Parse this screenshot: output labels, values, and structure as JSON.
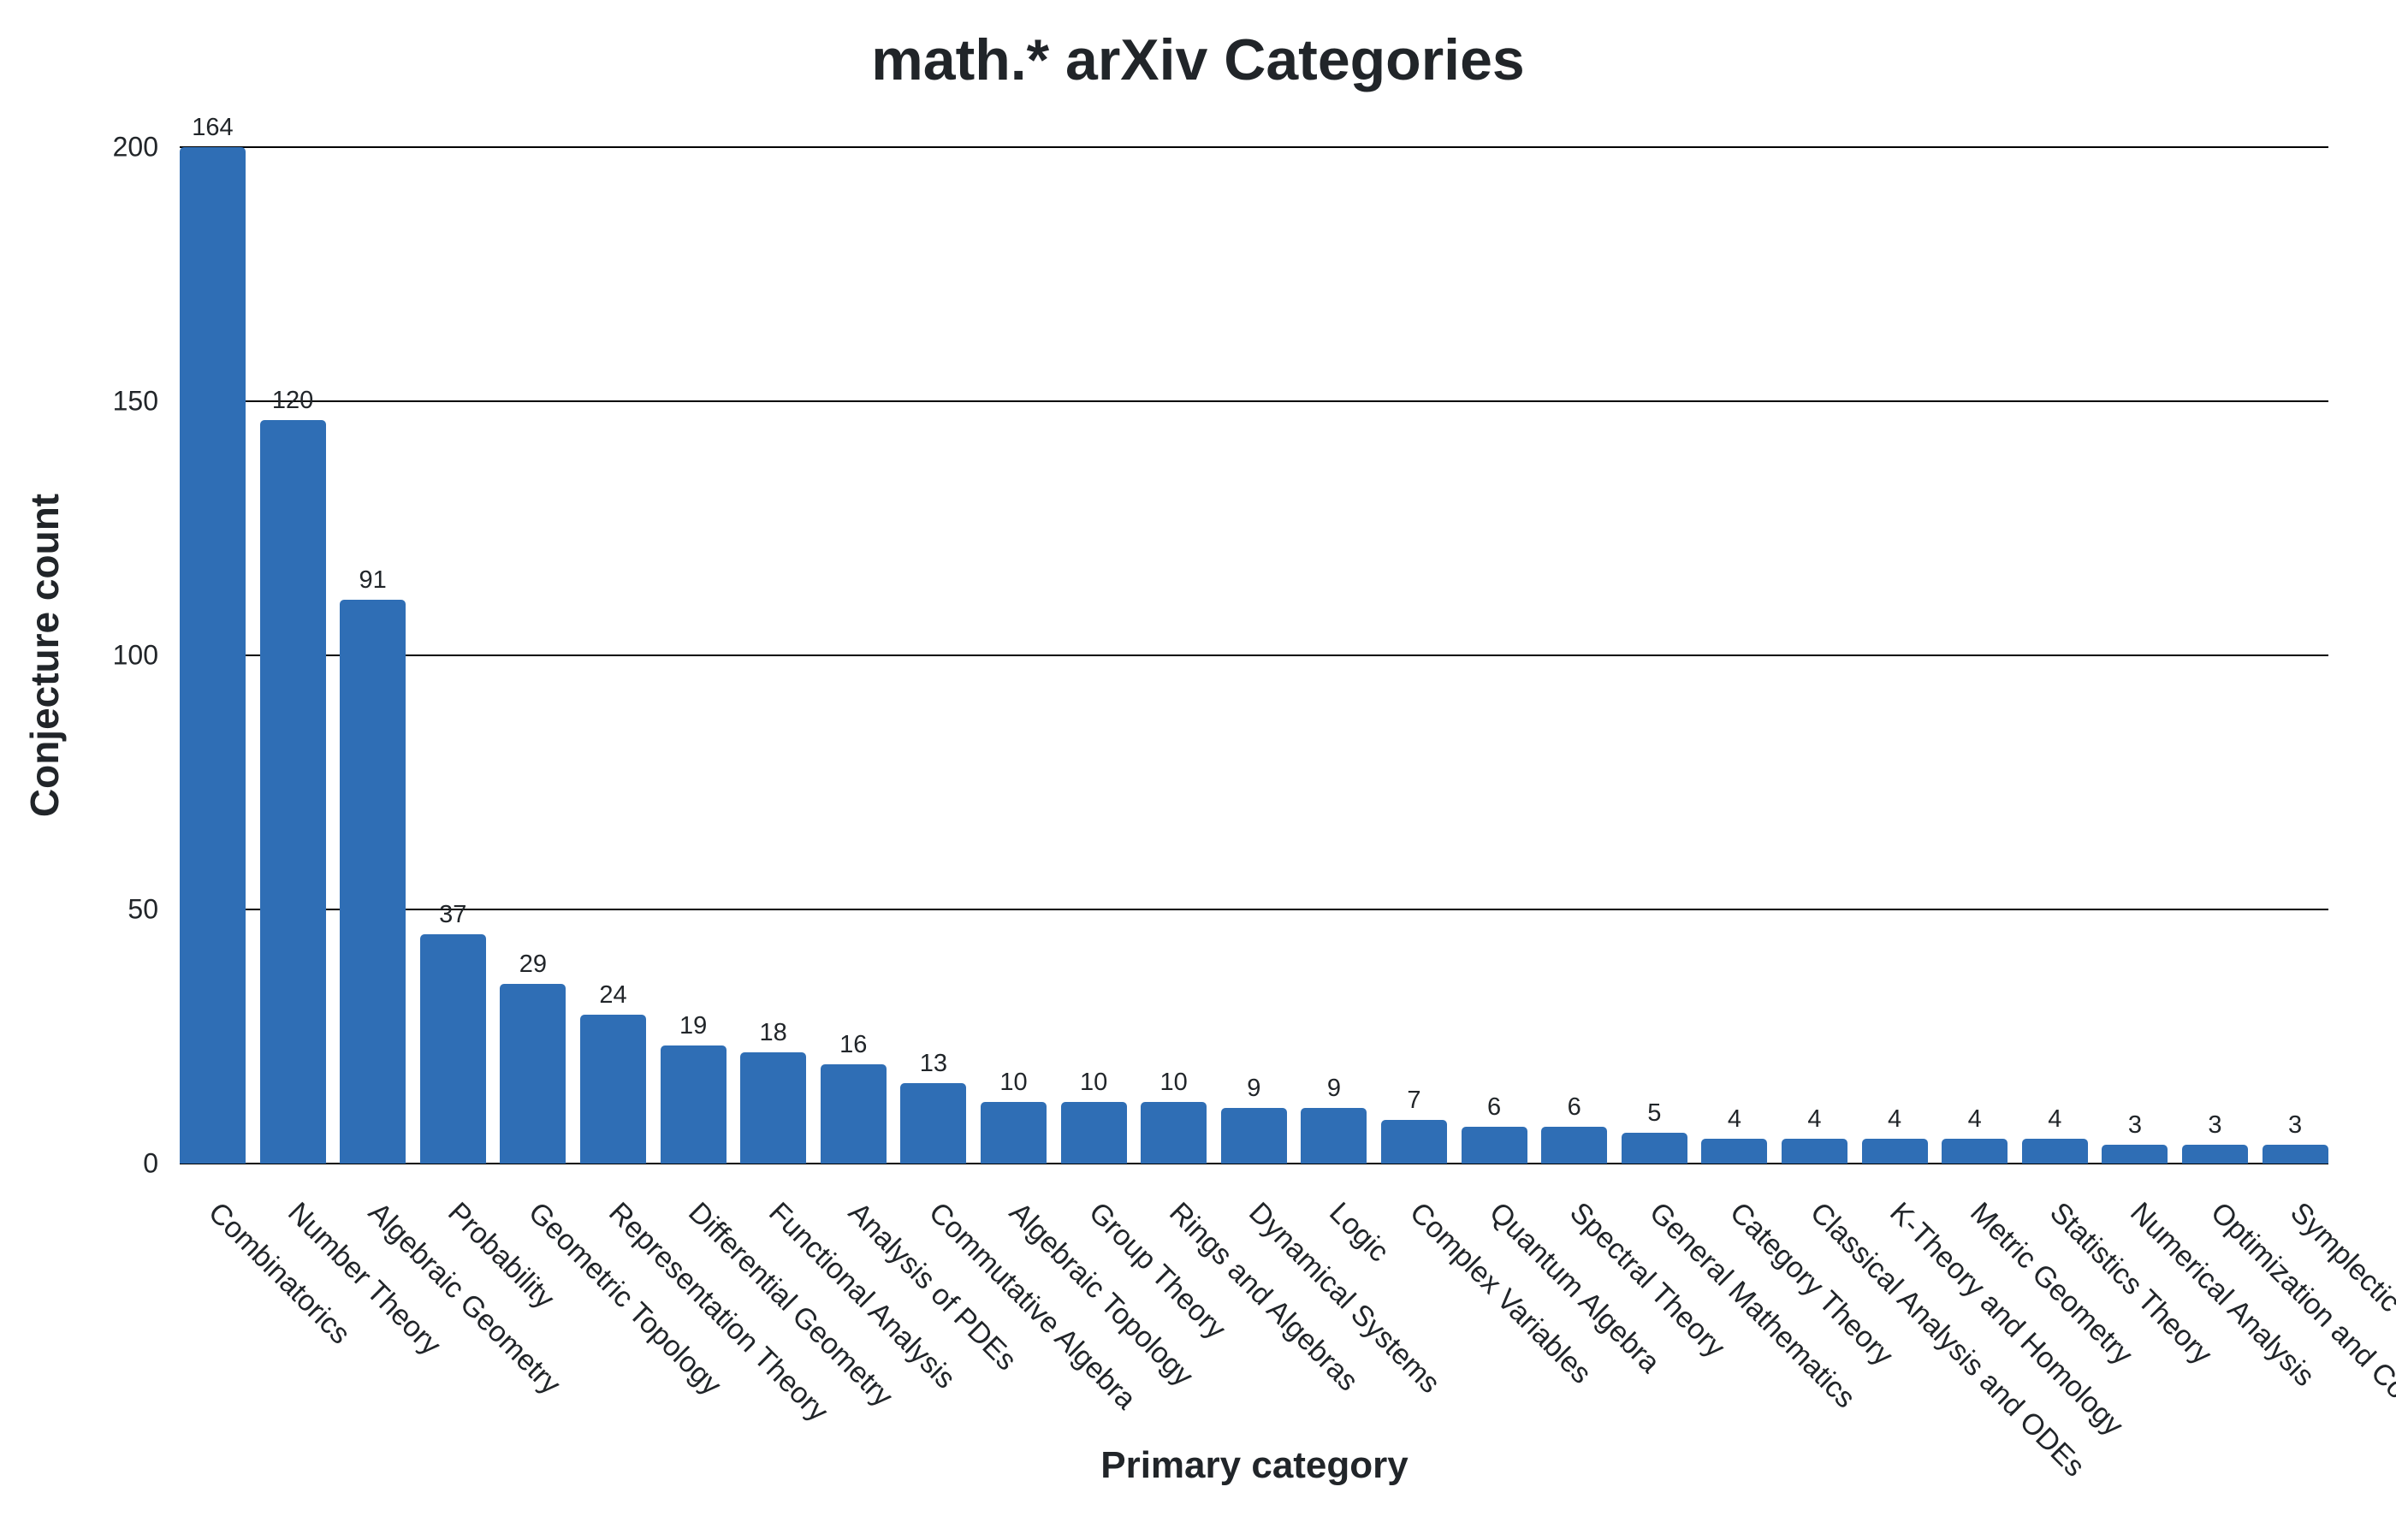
{
  "chart_data": {
    "type": "bar",
    "title": "math.* arXiv Categories",
    "xlabel": "Primary category",
    "ylabel": "Conjecture count",
    "ylim": [
      0,
      200
    ],
    "yticks": [
      "0",
      "50",
      "100",
      "150",
      "200"
    ],
    "grid": true,
    "legend": null,
    "bar_color": "#2f6eb5",
    "categories": [
      "Combinatorics",
      "Number Theory",
      "Algebraic Geometry",
      "Probability",
      "Geometric Topology",
      "Representation Theory",
      "Differential Geometry",
      "Functional Analysis",
      "Analysis of PDEs",
      "Commutative Algebra",
      "Algebraic Topology",
      "Group Theory",
      "Rings and Algebras",
      "Dynamical Systems",
      "Logic",
      "Complex Variables",
      "Quantum Algebra",
      "Spectral Theory",
      "General Mathematics",
      "Category Theory",
      "Classical Analysis and ODEs",
      "K-Theory and Homology",
      "Metric Geometry",
      "Statistics Theory",
      "Numerical Analysis",
      "Optimization and Co",
      "Symplectic"
    ],
    "values": [
      164,
      120,
      91,
      37,
      29,
      24,
      19,
      18,
      16,
      13,
      10,
      10,
      10,
      9,
      9,
      7,
      6,
      6,
      5,
      4,
      4,
      4,
      4,
      4,
      3,
      3,
      3
    ]
  }
}
